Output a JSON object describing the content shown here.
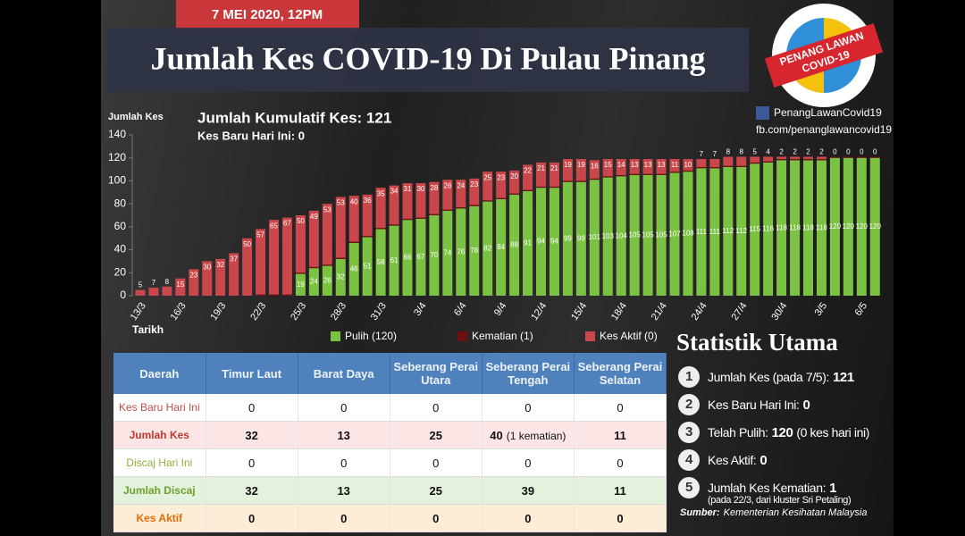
{
  "header": {
    "date": "7 MEI 2020, 12PM",
    "title": "Jumlah Kes COVID-19 Di Pulau Pinang"
  },
  "logo": {
    "line1": "PENANG LAWAN",
    "line2": "COVID-19"
  },
  "social": {
    "facebook": "PenangLawanCovid19",
    "url": "fb.com/penanglawancovid19"
  },
  "chart_data": {
    "type": "bar",
    "stacked": true,
    "y_label": "Jumlah Kes",
    "x_label": "Tarikh",
    "annotations": [
      "Jumlah Kumulatif Kes: 121",
      "Kes Baru Hari Ini: 0"
    ],
    "categories": [
      "13/3",
      null,
      null,
      "16/3",
      null,
      null,
      "19/3",
      null,
      null,
      "22/3",
      null,
      null,
      "25/3",
      null,
      null,
      "28/3",
      null,
      null,
      "31/3",
      null,
      null,
      "3/4",
      null,
      null,
      "6/4",
      null,
      null,
      "9/4",
      null,
      null,
      "12/4",
      null,
      null,
      "15/4",
      null,
      null,
      "18/4",
      null,
      null,
      "21/4",
      null,
      null,
      "24/4",
      null,
      null,
      "27/4",
      null,
      null,
      "30/4",
      null,
      null,
      "3/5",
      null,
      null,
      "6/5",
      null
    ],
    "series": [
      {
        "name": "Pulih (120)",
        "color": "#7cc242",
        "show_values": true,
        "values": [
          null,
          null,
          null,
          null,
          null,
          null,
          null,
          null,
          null,
          null,
          null,
          null,
          19,
          24,
          26,
          32,
          46,
          51,
          58,
          61,
          66,
          67,
          70,
          74,
          76,
          78,
          82,
          84,
          88,
          91,
          94,
          94,
          99,
          99,
          101,
          103,
          104,
          105,
          105,
          105,
          107,
          108,
          111,
          111,
          112,
          112,
          115,
          116,
          118,
          118,
          118,
          118,
          120,
          120,
          120,
          120
        ]
      },
      {
        "name": "Kematian (1)",
        "color": "#6e0f12",
        "show_values": false,
        "values": [
          null,
          null,
          null,
          null,
          null,
          null,
          null,
          null,
          null,
          1,
          1,
          1,
          1,
          1,
          1,
          1,
          1,
          1,
          1,
          1,
          1,
          1,
          1,
          1,
          1,
          1,
          1,
          1,
          1,
          1,
          1,
          1,
          1,
          1,
          1,
          1,
          1,
          1,
          1,
          1,
          1,
          1,
          1,
          1,
          1,
          1,
          1,
          1,
          1,
          1,
          1,
          1,
          1,
          1,
          1,
          1
        ]
      },
      {
        "name": "Kes Aktif (0)",
        "color": "#c9474a",
        "show_values": true,
        "values": [
          5,
          7,
          8,
          15,
          23,
          30,
          32,
          37,
          50,
          57,
          65,
          67,
          50,
          49,
          53,
          53,
          40,
          36,
          35,
          34,
          31,
          30,
          28,
          26,
          24,
          23,
          25,
          23,
          20,
          22,
          21,
          21,
          19,
          19,
          16,
          15,
          14,
          13,
          13,
          13,
          11,
          10,
          7,
          7,
          8,
          8,
          5,
          4,
          2,
          2,
          2,
          2,
          0,
          0,
          0,
          0
        ]
      }
    ],
    "ylim": [
      0,
      140
    ],
    "yticks": [
      0,
      20,
      40,
      60,
      80,
      100,
      120,
      140
    ],
    "grid": false,
    "legend": "bottom"
  },
  "table": {
    "headers": [
      "Daerah",
      "Timur Laut",
      "Barat Daya",
      "Seberang Perai Utara",
      "Seberang Perai Tengah",
      "Seberang Perai Selatan"
    ],
    "rows": [
      [
        "Kes Baru Hari Ini",
        0,
        0,
        0,
        0,
        0
      ],
      [
        "Jumlah Kes",
        32,
        13,
        25,
        {
          "value": 40,
          "note": "(1 kematian)"
        },
        11
      ],
      [
        "Discaj Hari Ini",
        0,
        0,
        0,
        0,
        0
      ],
      [
        "Jumlah Discaj",
        32,
        13,
        25,
        39,
        11
      ],
      [
        "Kes Aktif",
        0,
        0,
        0,
        0,
        0
      ]
    ]
  },
  "stats": {
    "title": "Statistik Utama",
    "items": [
      {
        "number": 1,
        "label": "Jumlah Kes (pada 7/5):",
        "value": 121
      },
      {
        "number": 2,
        "label": "Kes Baru Hari Ini:",
        "value": 0
      },
      {
        "number": 3,
        "label": "Telah Pulih:",
        "value": 120,
        "note": "(0 kes hari ini)"
      },
      {
        "number": 4,
        "label": "Kes Aktif:",
        "value": 0
      },
      {
        "number": 5,
        "label": "Jumlah Kes Kematian:",
        "value": 1,
        "note": "(pada 22/3, dari kluster Sri Petaling)"
      }
    ],
    "source_label": "Sumber:",
    "source": "Kementerian Kesihatan Malaysia"
  }
}
